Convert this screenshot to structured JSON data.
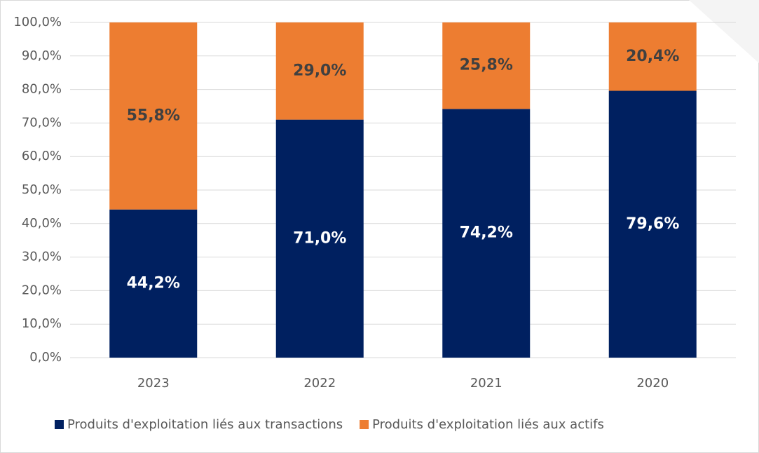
{
  "chart_data": {
    "type": "stacked_bar",
    "categories": [
      "2023",
      "2022",
      "2021",
      "2020"
    ],
    "series": [
      {
        "name": "Produits d'exploitation liés aux transactions",
        "color": "#002060",
        "values": [
          44.2,
          71.0,
          74.2,
          79.6
        ],
        "value_labels": [
          "44,2%",
          "71,0%",
          "74,2%",
          "79,6%"
        ]
      },
      {
        "name": "Produits d'exploitation liés aux actifs",
        "color": "#ED7D31",
        "values": [
          55.8,
          29.0,
          25.8,
          20.4
        ],
        "value_labels": [
          "55,8%",
          "29,0%",
          "25,8%",
          "20,4%"
        ]
      }
    ],
    "ylim": [
      0,
      100
    ],
    "yticks": [
      {
        "value": 0,
        "label": "0,0%"
      },
      {
        "value": 10,
        "label": "10,0%"
      },
      {
        "value": 20,
        "label": "20,0%"
      },
      {
        "value": 30,
        "label": "30,0%"
      },
      {
        "value": 40,
        "label": "40,0%"
      },
      {
        "value": 50,
        "label": "50,0%"
      },
      {
        "value": 60,
        "label": "60,0%"
      },
      {
        "value": 70,
        "label": "70,0%"
      },
      {
        "value": 80,
        "label": "80,0%"
      },
      {
        "value": 90,
        "label": "90,0%"
      },
      {
        "value": 100,
        "label": "100,0%"
      }
    ],
    "grid": true,
    "legend": "bottom"
  }
}
